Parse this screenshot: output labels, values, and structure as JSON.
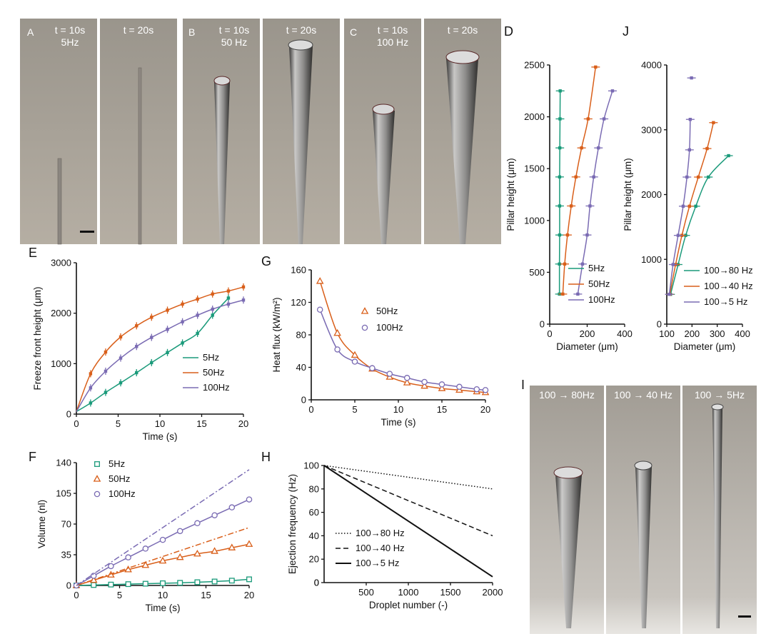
{
  "colors": {
    "green": "#1a9a7a",
    "orange": "#d95f1a",
    "purple": "#7a6bb3",
    "black": "#111111"
  },
  "photos": [
    {
      "panel": "A",
      "t10": "t = 10s",
      "freq": "5Hz",
      "t20": "t = 20s"
    },
    {
      "panel": "B",
      "t10": "t = 10s",
      "freq": "50 Hz",
      "t20": "t = 20s"
    },
    {
      "panel": "C",
      "t10": "t = 10s",
      "freq": "100 Hz",
      "t20": "t = 20s"
    }
  ],
  "photosI": {
    "panel": "I",
    "labels": [
      "100 → 80Hz",
      "100 → 40 Hz",
      "100 → 5Hz"
    ]
  },
  "chart_data": [
    {
      "id": "D",
      "type": "line",
      "xlabel": "Diameter (μm)",
      "ylabel": "Pillar height (μm)",
      "xlim": [
        0,
        400
      ],
      "ylim": [
        0,
        2500
      ],
      "xticks": [
        0,
        200,
        400
      ],
      "yticks": [
        0,
        500,
        1000,
        1500,
        2000,
        2500
      ],
      "legend": [
        "5Hz",
        "50Hz",
        "100Hz"
      ],
      "series": [
        {
          "name": "5Hz",
          "color": "green",
          "x": [
            52,
            52,
            53,
            53,
            53,
            54,
            55,
            56
          ],
          "y": [
            290,
            580,
            860,
            1140,
            1420,
            1700,
            1980,
            2250
          ]
        },
        {
          "name": "50Hz",
          "color": "orange",
          "x": [
            70,
            80,
            95,
            115,
            140,
            170,
            205,
            245
          ],
          "y": [
            290,
            580,
            860,
            1140,
            1420,
            1700,
            1980,
            2480
          ]
        },
        {
          "name": "100Hz",
          "color": "purple",
          "x": [
            150,
            175,
            200,
            215,
            235,
            260,
            290,
            335
          ],
          "y": [
            290,
            580,
            860,
            1140,
            1420,
            1700,
            1980,
            2250
          ]
        }
      ]
    },
    {
      "id": "J",
      "type": "line",
      "xlabel": "Diameter (μm)",
      "ylabel": "Pillar height (μm)",
      "xlim": [
        100,
        400
      ],
      "ylim": [
        0,
        4000
      ],
      "xticks": [
        100,
        200,
        300,
        400
      ],
      "yticks": [
        0,
        1000,
        2000,
        3000,
        4000
      ],
      "legend": [
        "100→80 Hz",
        "100→40 Hz",
        "100→5 Hz"
      ],
      "series": [
        {
          "name": "100→80 Hz",
          "color": "green",
          "x": [
            115,
            145,
            175,
            215,
            265,
            345
          ],
          "y": [
            460,
            920,
            1370,
            1820,
            2270,
            2600
          ]
        },
        {
          "name": "100→40 Hz",
          "color": "orange",
          "x": [
            112,
            135,
            160,
            190,
            225,
            260,
            285
          ],
          "y": [
            460,
            920,
            1370,
            1820,
            2270,
            2710,
            3110
          ]
        },
        {
          "name": "100→5 Hz",
          "color": "purple",
          "x": [
            110,
            125,
            145,
            165,
            180,
            190,
            193
          ],
          "y": [
            460,
            920,
            1370,
            1820,
            2270,
            2690,
            3160
          ]
        },
        {
          "name": "100→5 Hz top",
          "color": "purple",
          "x": [
            198
          ],
          "y": [
            3800
          ]
        }
      ]
    },
    {
      "id": "E",
      "type": "line",
      "xlabel": "Time (s)",
      "ylabel": "Freeze front height (μm)",
      "xlim": [
        0,
        20
      ],
      "ylim": [
        0,
        3000
      ],
      "xticks": [
        0,
        5,
        10,
        15,
        20
      ],
      "yticks": [
        0,
        1000,
        2000,
        3000
      ],
      "legend": [
        "5Hz",
        "50Hz",
        "100Hz"
      ],
      "series": [
        {
          "name": "5Hz",
          "color": "green",
          "x": [
            0,
            1.7,
            3.5,
            5.3,
            7.2,
            9,
            10.9,
            12.7,
            14.5,
            16.3,
            18.2
          ],
          "y": [
            50,
            220,
            430,
            620,
            820,
            1020,
            1220,
            1410,
            1600,
            1960,
            2300
          ]
        },
        {
          "name": "50Hz",
          "color": "orange",
          "x": [
            0,
            1.7,
            3.5,
            5.3,
            7.2,
            9,
            10.9,
            12.7,
            14.5,
            16.3,
            18.2,
            20
          ],
          "y": [
            50,
            800,
            1230,
            1530,
            1750,
            1920,
            2060,
            2180,
            2280,
            2380,
            2440,
            2520
          ]
        },
        {
          "name": "100Hz",
          "color": "purple",
          "x": [
            0,
            1.7,
            3.5,
            5.3,
            7.2,
            9,
            10.9,
            12.7,
            14.5,
            16.3,
            18.2,
            20
          ],
          "y": [
            50,
            520,
            850,
            1110,
            1340,
            1520,
            1680,
            1830,
            1960,
            2080,
            2180,
            2260
          ]
        }
      ]
    },
    {
      "id": "G",
      "type": "line",
      "xlabel": "Time (s)",
      "ylabel": "Heat flux (kW/m²)",
      "xlim": [
        0,
        20
      ],
      "ylim": [
        0,
        160
      ],
      "xticks": [
        0,
        5,
        10,
        15,
        20
      ],
      "yticks": [
        0,
        40,
        80,
        120,
        160
      ],
      "legend": [
        "50Hz",
        "100Hz"
      ],
      "series": [
        {
          "name": "50Hz",
          "color": "orange",
          "marker": "triangle",
          "x": [
            1,
            3,
            5,
            7,
            9,
            11,
            13,
            15,
            17,
            19,
            20
          ],
          "y": [
            146,
            82,
            55,
            38,
            28,
            21,
            17,
            14,
            12,
            10,
            9
          ]
        },
        {
          "name": "100Hz",
          "color": "purple",
          "marker": "circle",
          "x": [
            1,
            3,
            5,
            7,
            9,
            11,
            13,
            15,
            17,
            19,
            20
          ],
          "y": [
            111,
            62,
            47,
            39,
            32,
            27,
            22,
            19,
            16,
            13,
            12
          ]
        }
      ]
    },
    {
      "id": "F",
      "type": "line",
      "xlabel": "Time (s)",
      "ylabel": "Volume (nl)",
      "xlim": [
        0,
        20
      ],
      "ylim": [
        0,
        140
      ],
      "xticks": [
        0,
        5,
        10,
        15,
        20
      ],
      "yticks": [
        0,
        35,
        70,
        105,
        140
      ],
      "legend": [
        "5Hz",
        "50Hz",
        "100Hz"
      ],
      "series": [
        {
          "name": "5Hz",
          "color": "green",
          "marker": "square",
          "x": [
            0,
            2,
            4,
            6,
            8,
            10,
            12,
            14,
            16,
            18,
            20
          ],
          "y": [
            0,
            0.5,
            1,
            1.5,
            2,
            2.5,
            3,
            3.7,
            4.5,
            5.5,
            7
          ]
        },
        {
          "name": "50Hz",
          "color": "orange",
          "marker": "triangle",
          "x": [
            0,
            2,
            4,
            6,
            8,
            10,
            12,
            14,
            16,
            18,
            20
          ],
          "y": [
            0,
            6,
            12,
            18,
            23,
            28,
            32,
            36,
            39,
            43,
            47
          ]
        },
        {
          "name": "100Hz",
          "color": "purple",
          "marker": "circle",
          "x": [
            0,
            2,
            4,
            6,
            8,
            10,
            12,
            14,
            16,
            18,
            20
          ],
          "y": [
            0,
            11,
            22,
            32,
            42,
            52,
            62,
            71,
            80,
            89,
            98
          ]
        },
        {
          "name": "50Hz ideal",
          "color": "orange",
          "dash": "dashdot",
          "x": [
            0,
            20
          ],
          "y": [
            0,
            66
          ]
        },
        {
          "name": "100Hz ideal",
          "color": "purple",
          "dash": "dashdot",
          "x": [
            0,
            20
          ],
          "y": [
            0,
            132
          ]
        }
      ]
    },
    {
      "id": "H",
      "type": "line",
      "xlabel": "Droplet number (-)",
      "ylabel": "Ejection frequency (Hz)",
      "xlim": [
        0,
        2000
      ],
      "ylim": [
        0,
        100
      ],
      "xticks": [
        500,
        1000,
        1500,
        2000
      ],
      "yticks": [
        0,
        20,
        40,
        60,
        80,
        100
      ],
      "legend": [
        "100→80 Hz",
        "100→40 Hz",
        "100→5 Hz"
      ],
      "series": [
        {
          "name": "100→80 Hz",
          "color": "black",
          "dash": "dotted",
          "x": [
            0,
            2000
          ],
          "y": [
            100,
            80
          ]
        },
        {
          "name": "100→40 Hz",
          "color": "black",
          "dash": "dashed",
          "x": [
            0,
            2000
          ],
          "y": [
            100,
            40
          ]
        },
        {
          "name": "100→5 Hz",
          "color": "black",
          "dash": "solid",
          "x": [
            0,
            2000
          ],
          "y": [
            100,
            5
          ]
        }
      ]
    }
  ]
}
